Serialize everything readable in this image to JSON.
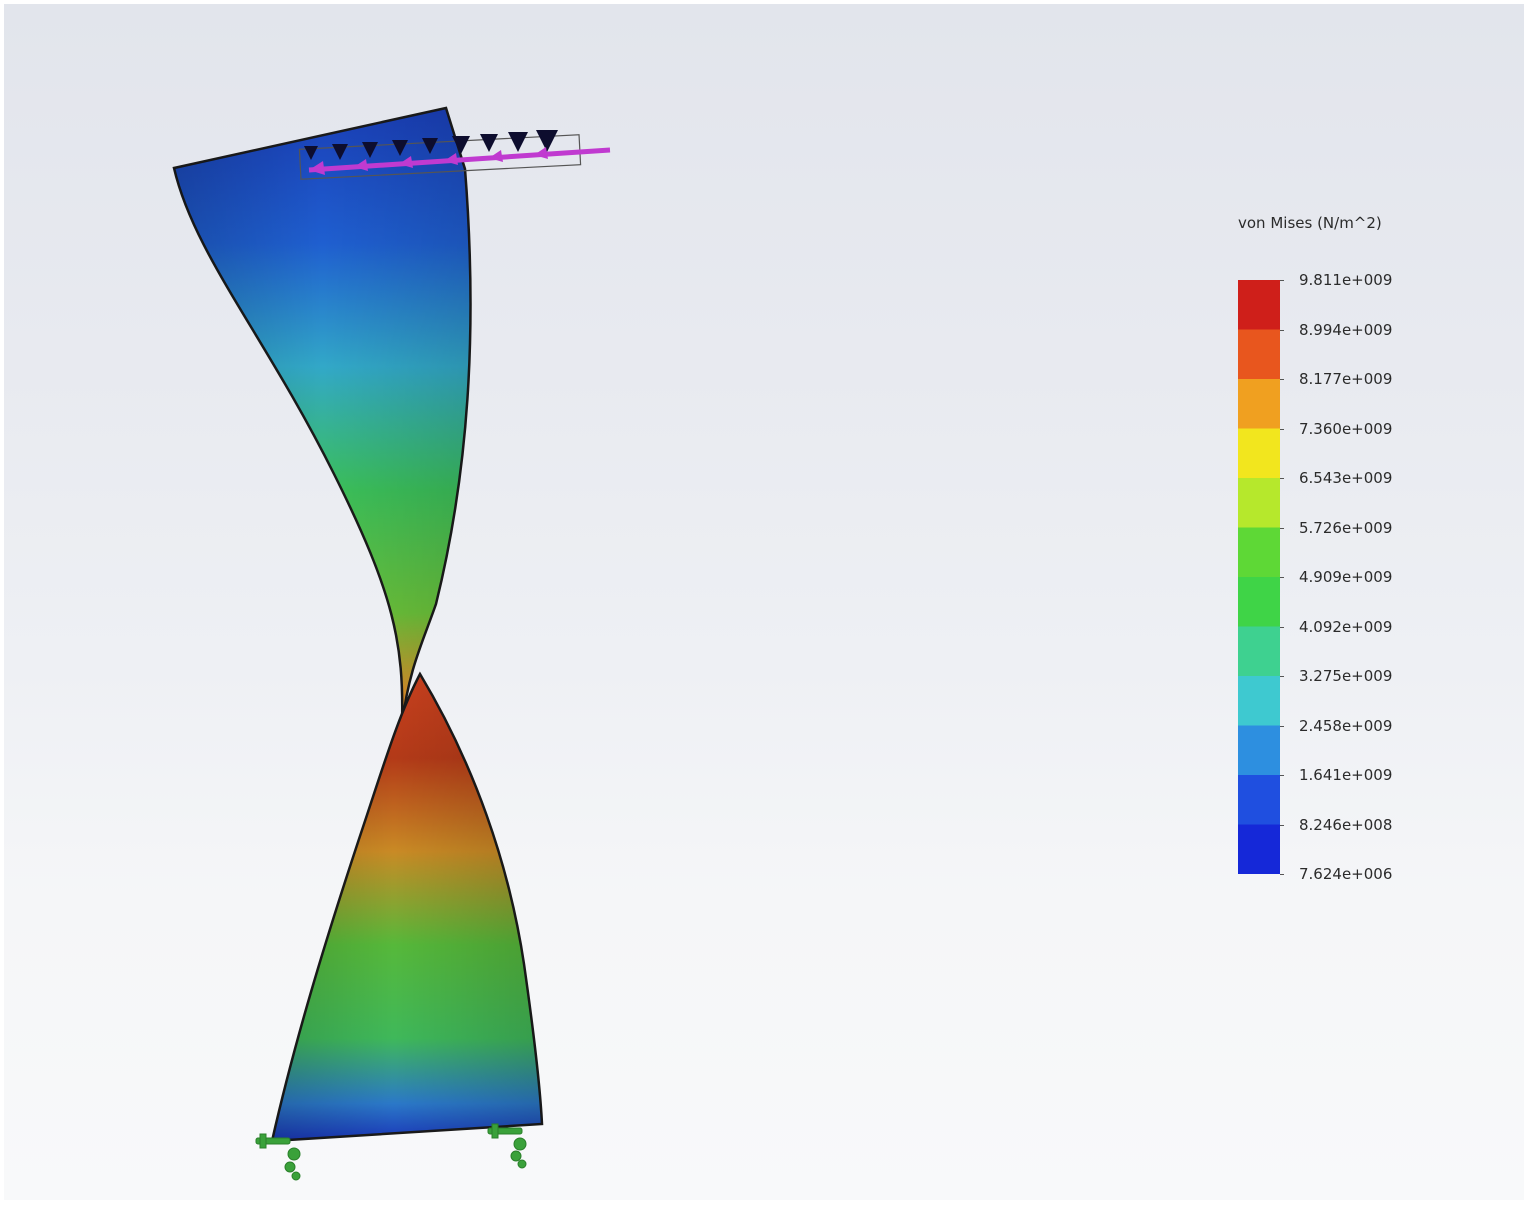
{
  "legend": {
    "title": "von Mises (N/m^2)",
    "labels": [
      "9.811e+009",
      "8.994e+009",
      "8.177e+009",
      "7.360e+009",
      "6.543e+009",
      "5.726e+009",
      "4.909e+009",
      "4.092e+009",
      "3.275e+009",
      "2.458e+009",
      "1.641e+009",
      "8.246e+008",
      "7.624e+006"
    ],
    "colors": [
      "#cf1f1a",
      "#e8561e",
      "#f0a020",
      "#f2e61e",
      "#b6e82c",
      "#5ed836",
      "#3fd447",
      "#3ed190",
      "#3ec9d0",
      "#2d8fe0",
      "#1f4fe0",
      "#1528d8"
    ]
  },
  "model": {
    "load_arrow_color": "#c03ad0",
    "fixture_color": "#3aa13a",
    "load_marker_color": "#0d0d2e"
  }
}
